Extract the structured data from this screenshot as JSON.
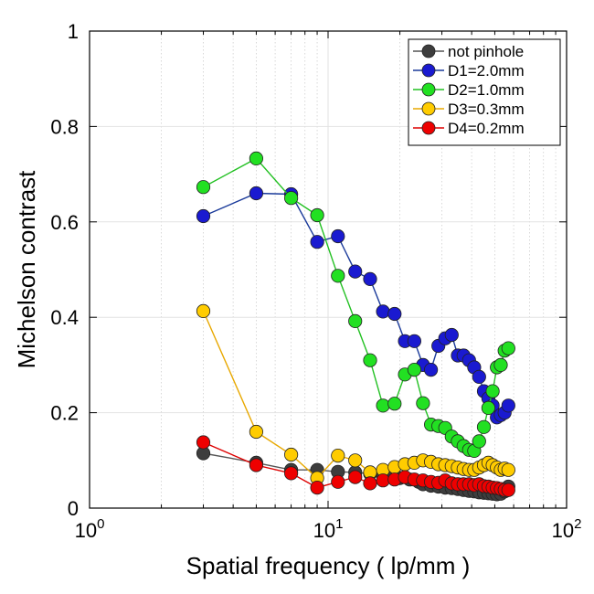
{
  "chart_data": {
    "type": "line",
    "title": "",
    "xlabel": "Spatial frequency ( lp/mm )",
    "ylabel": "Michelson contrast",
    "xscale": "log",
    "xlim": [
      1,
      100
    ],
    "ylim": [
      0,
      1
    ],
    "x_ticks": [
      {
        "value": 1,
        "base": "10",
        "exp": "0"
      },
      {
        "value": 10,
        "base": "10",
        "exp": "1"
      },
      {
        "value": 100,
        "base": "10",
        "exp": "2"
      }
    ],
    "y_ticks": [
      {
        "value": 0,
        "label": "0"
      },
      {
        "value": 0.2,
        "label": "0.2"
      },
      {
        "value": 0.4,
        "label": "0.4"
      },
      {
        "value": 0.6,
        "label": "0.6"
      },
      {
        "value": 0.8,
        "label": "0.8"
      },
      {
        "value": 1,
        "label": "1"
      }
    ],
    "grid": true,
    "legend_position": "top-right",
    "series": [
      {
        "name": "not pinhole",
        "color": "#3d3d3d",
        "line_color": "#555555",
        "points": [
          [
            3,
            0.115
          ],
          [
            5,
            0.095
          ],
          [
            7,
            0.08
          ],
          [
            9,
            0.08
          ],
          [
            11,
            0.076
          ],
          [
            13,
            0.075
          ],
          [
            15,
            0.072
          ],
          [
            17,
            0.068
          ],
          [
            18,
            0.066
          ],
          [
            20,
            0.063
          ],
          [
            22,
            0.06
          ],
          [
            24,
            0.055
          ],
          [
            25,
            0.05
          ],
          [
            27,
            0.047
          ],
          [
            29,
            0.045
          ],
          [
            31,
            0.043
          ],
          [
            33,
            0.042
          ],
          [
            35,
            0.04
          ],
          [
            37,
            0.038
          ],
          [
            39,
            0.036
          ],
          [
            41,
            0.035
          ],
          [
            43,
            0.033
          ],
          [
            45,
            0.032
          ],
          [
            47,
            0.031
          ],
          [
            49,
            0.03
          ],
          [
            51,
            0.029
          ],
          [
            53,
            0.03
          ],
          [
            55,
            0.035
          ],
          [
            57,
            0.045
          ]
        ]
      },
      {
        "name": "D1=2.0mm",
        "color": "#1a1ad0",
        "line_color": "#1a3a9a",
        "points": [
          [
            3,
            0.612
          ],
          [
            5,
            0.66
          ],
          [
            7,
            0.658
          ],
          [
            9,
            0.558
          ],
          [
            11,
            0.57
          ],
          [
            13,
            0.496
          ],
          [
            15,
            0.48
          ],
          [
            17,
            0.412
          ],
          [
            19,
            0.407
          ],
          [
            21,
            0.35
          ],
          [
            23,
            0.35
          ],
          [
            25,
            0.3
          ],
          [
            27,
            0.29
          ],
          [
            29,
            0.34
          ],
          [
            31,
            0.356
          ],
          [
            33,
            0.363
          ],
          [
            35,
            0.32
          ],
          [
            37,
            0.32
          ],
          [
            39,
            0.31
          ],
          [
            41,
            0.295
          ],
          [
            43,
            0.275
          ],
          [
            45,
            0.245
          ],
          [
            47,
            0.23
          ],
          [
            49,
            0.215
          ],
          [
            51,
            0.19
          ],
          [
            53,
            0.195
          ],
          [
            55,
            0.2
          ],
          [
            57,
            0.215
          ]
        ]
      },
      {
        "name": "D2=1.0mm",
        "color": "#22e022",
        "line_color": "#22c022",
        "points": [
          [
            3,
            0.673
          ],
          [
            5,
            0.733
          ],
          [
            7,
            0.65
          ],
          [
            9,
            0.614
          ],
          [
            11,
            0.487
          ],
          [
            13,
            0.392
          ],
          [
            15,
            0.31
          ],
          [
            17,
            0.215
          ],
          [
            19,
            0.219
          ],
          [
            21,
            0.28
          ],
          [
            23,
            0.29
          ],
          [
            25,
            0.22
          ],
          [
            27,
            0.175
          ],
          [
            29,
            0.172
          ],
          [
            31,
            0.168
          ],
          [
            33,
            0.15
          ],
          [
            35,
            0.14
          ],
          [
            37,
            0.13
          ],
          [
            39,
            0.122
          ],
          [
            41,
            0.12
          ],
          [
            43,
            0.14
          ],
          [
            45,
            0.17
          ],
          [
            47,
            0.21
          ],
          [
            49,
            0.245
          ],
          [
            51,
            0.295
          ],
          [
            53,
            0.3
          ],
          [
            55,
            0.33
          ],
          [
            57,
            0.335
          ]
        ]
      },
      {
        "name": "D3=0.3mm",
        "color": "#ffcc00",
        "line_color": "#e8a800",
        "points": [
          [
            3,
            0.413
          ],
          [
            5,
            0.16
          ],
          [
            7,
            0.112
          ],
          [
            9,
            0.063
          ],
          [
            11,
            0.11
          ],
          [
            13,
            0.1
          ],
          [
            15,
            0.075
          ],
          [
            17,
            0.08
          ],
          [
            19,
            0.086
          ],
          [
            21,
            0.092
          ],
          [
            23,
            0.095
          ],
          [
            25,
            0.1
          ],
          [
            27,
            0.097
          ],
          [
            29,
            0.092
          ],
          [
            31,
            0.09
          ],
          [
            33,
            0.088
          ],
          [
            35,
            0.085
          ],
          [
            37,
            0.082
          ],
          [
            39,
            0.08
          ],
          [
            41,
            0.08
          ],
          [
            43,
            0.085
          ],
          [
            45,
            0.09
          ],
          [
            47,
            0.095
          ],
          [
            49,
            0.09
          ],
          [
            51,
            0.085
          ],
          [
            53,
            0.08
          ],
          [
            55,
            0.083
          ],
          [
            57,
            0.08
          ]
        ]
      },
      {
        "name": "D4=0.2mm",
        "color": "#ee0000",
        "line_color": "#dd0000",
        "points": [
          [
            3,
            0.138
          ],
          [
            5,
            0.09
          ],
          [
            7,
            0.073
          ],
          [
            9,
            0.043
          ],
          [
            11,
            0.055
          ],
          [
            13,
            0.065
          ],
          [
            15,
            0.052
          ],
          [
            17,
            0.058
          ],
          [
            19,
            0.06
          ],
          [
            21,
            0.065
          ],
          [
            23,
            0.06
          ],
          [
            25,
            0.058
          ],
          [
            27,
            0.055
          ],
          [
            29,
            0.053
          ],
          [
            31,
            0.058
          ],
          [
            33,
            0.052
          ],
          [
            35,
            0.05
          ],
          [
            37,
            0.05
          ],
          [
            39,
            0.05
          ],
          [
            41,
            0.048
          ],
          [
            43,
            0.05
          ],
          [
            45,
            0.046
          ],
          [
            47,
            0.045
          ],
          [
            49,
            0.043
          ],
          [
            51,
            0.042
          ],
          [
            53,
            0.04
          ],
          [
            55,
            0.038
          ],
          [
            57,
            0.038
          ]
        ]
      }
    ]
  }
}
